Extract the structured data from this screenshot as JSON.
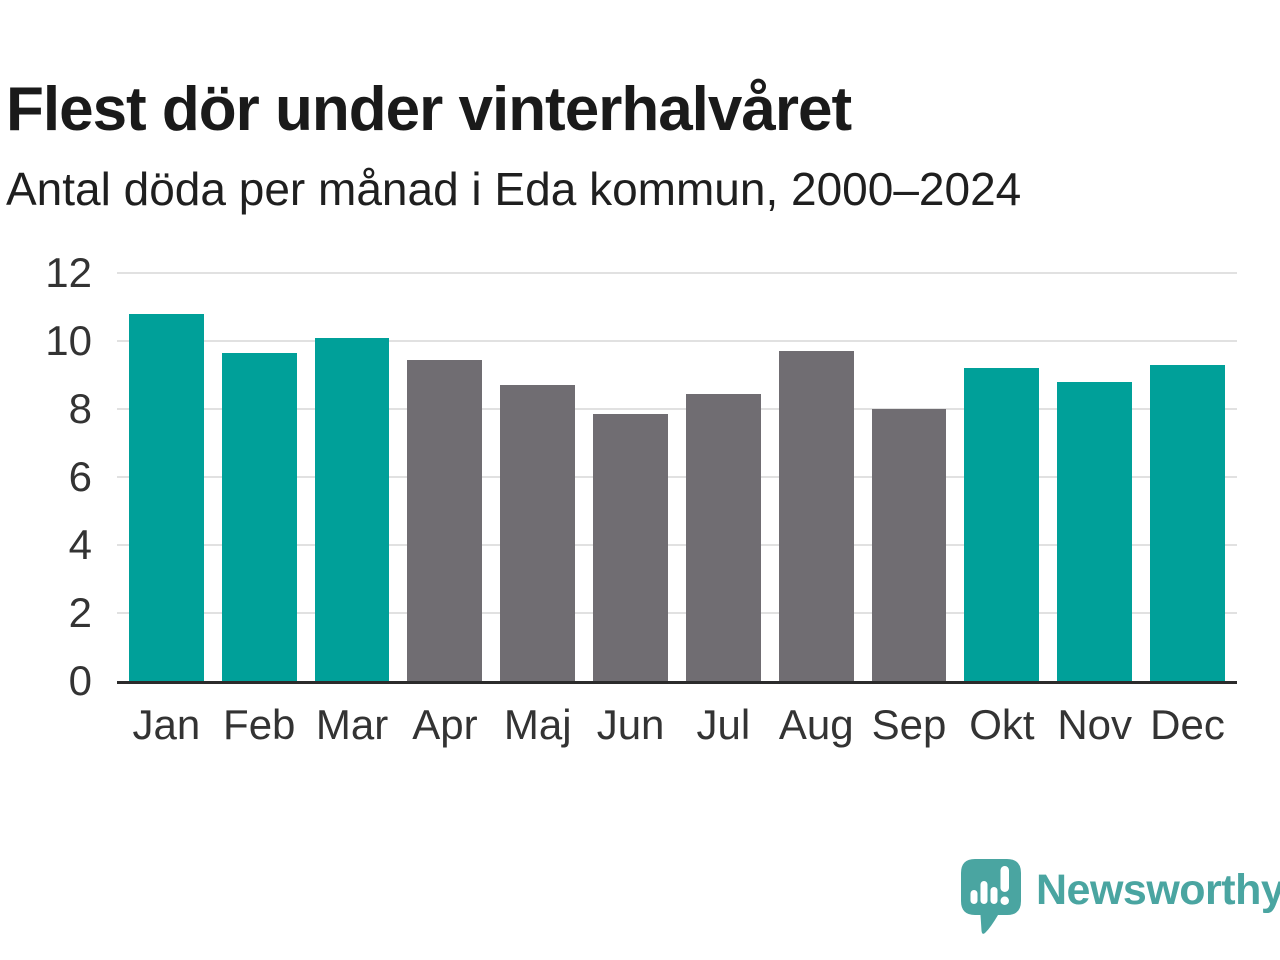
{
  "header": {
    "title": "Flest dör under vinterhalvåret",
    "subtitle": "Antal döda per månad i Eda kommun, 2000–2024"
  },
  "chart_data": {
    "type": "bar",
    "categories": [
      "Jan",
      "Feb",
      "Mar",
      "Apr",
      "Maj",
      "Jun",
      "Jul",
      "Aug",
      "Sep",
      "Okt",
      "Nov",
      "Dec"
    ],
    "values": [
      10.8,
      9.65,
      10.1,
      9.45,
      8.7,
      7.85,
      8.45,
      9.7,
      8.0,
      9.2,
      8.8,
      9.3
    ],
    "title": "Flest dör under vinterhalvåret",
    "subtitle": "Antal döda per månad i Eda kommun, 2000–2024",
    "xlabel": "",
    "ylabel": "",
    "ylim": [
      0,
      12
    ],
    "yticks": [
      0,
      2,
      4,
      6,
      8,
      10,
      12
    ],
    "grid": true,
    "legend_position": "none",
    "highlight_color": "#00A099",
    "base_color": "#706D72",
    "highlighted_categories": [
      "Jan",
      "Feb",
      "Mar",
      "Okt",
      "Nov",
      "Dec"
    ],
    "gridline_color": "#e1e1e1",
    "axis_color": "#2b2b2b",
    "tick_color": "#333333"
  },
  "footer": {
    "brand": "Newsworthy",
    "brand_color": "#4AA5A1",
    "logo_icon": "newsworthy-speech-bubble-chart-icon"
  }
}
